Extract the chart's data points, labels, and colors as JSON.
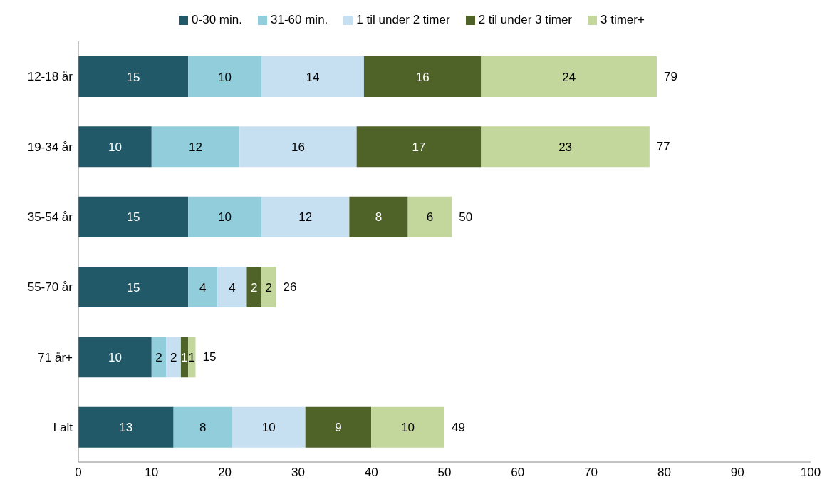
{
  "chart_data": {
    "type": "bar",
    "orientation": "horizontal",
    "stacked": true,
    "categories": [
      "12-18 år",
      "19-34 år",
      "35-54 år",
      "55-70 år",
      "71 år+",
      "I alt"
    ],
    "series": [
      {
        "name": "0-30 min.",
        "color": "#215968",
        "values": [
          15,
          10,
          15,
          15,
          10,
          13
        ]
      },
      {
        "name": "31-60 min.",
        "color": "#92cddc",
        "values": [
          10,
          12,
          10,
          4,
          2,
          8
        ]
      },
      {
        "name": "1 til under 2 timer",
        "color": "#c6e0f2",
        "values": [
          14,
          16,
          12,
          4,
          2,
          10
        ]
      },
      {
        "name": "2 til under 3 timer",
        "color": "#4f6228",
        "values": [
          16,
          17,
          8,
          2,
          1,
          9
        ]
      },
      {
        "name": "3 timer+",
        "color": "#c3d69b",
        "values": [
          24,
          23,
          6,
          2,
          1,
          10
        ]
      }
    ],
    "totals": [
      "79",
      "77",
      "50",
      "26",
      "15",
      "49"
    ],
    "data_labels": true,
    "xlim": [
      0,
      100
    ],
    "xticks": [
      0,
      10,
      20,
      30,
      40,
      50,
      60,
      70,
      80,
      90,
      100
    ],
    "legend": "top"
  }
}
